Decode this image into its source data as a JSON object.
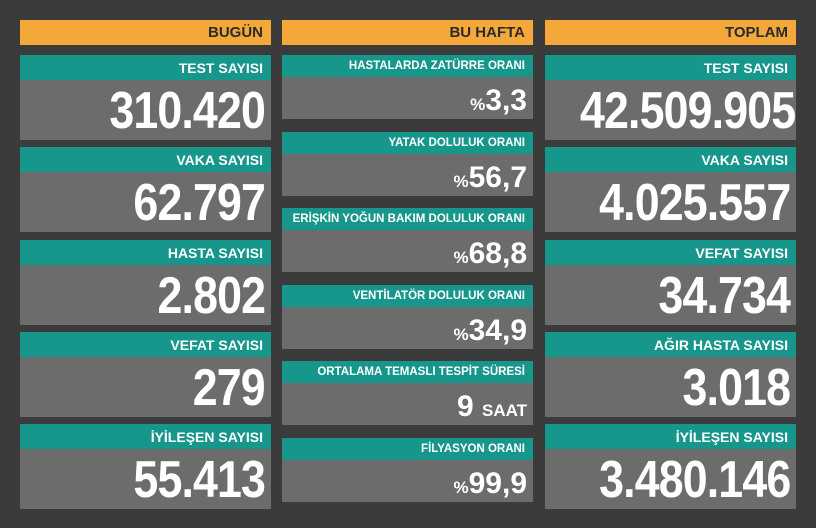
{
  "columns": [
    {
      "header": "BUGÜN",
      "cards": [
        {
          "label": "TEST SAYISI",
          "value": "310.420"
        },
        {
          "label": "VAKA SAYISI",
          "value": "62.797"
        },
        {
          "label": "HASTA SAYISI",
          "value": "2.802"
        },
        {
          "label": "VEFAT SAYISI",
          "value": "279"
        },
        {
          "label": "İYİLEŞEN SAYISI",
          "value": "55.413"
        }
      ]
    },
    {
      "header": "BU HAFTA",
      "cards": [
        {
          "label": "HASTALARDA ZATÜRRE ORANI",
          "prefix": "%",
          "value": "3,3"
        },
        {
          "label": "YATAK DOLULUK ORANI",
          "prefix": "%",
          "value": "56,7"
        },
        {
          "label": "ERİŞKİN YOĞUN BAKIM DOLULUK ORANI",
          "prefix": "%",
          "value": "68,8"
        },
        {
          "label": "VENTİLATÖR DOLULUK ORANI",
          "prefix": "%",
          "value": "34,9"
        },
        {
          "label": "ORTALAMA TEMASLI TESPİT SÜRESİ",
          "value": "9",
          "suffix": "SAAT"
        },
        {
          "label": "FİLYASYON ORANI",
          "prefix": "%",
          "value": "99,9"
        }
      ]
    },
    {
      "header": "TOPLAM",
      "cards": [
        {
          "label": "TEST SAYISI",
          "value": "42.509.905"
        },
        {
          "label": "VAKA SAYISI",
          "value": "4.025.557"
        },
        {
          "label": "VEFAT SAYISI",
          "value": "34.734"
        },
        {
          "label": "AĞIR HASTA SAYISI",
          "value": "3.018"
        },
        {
          "label": "İYİLEŞEN SAYISI",
          "value": "3.480.146"
        }
      ]
    }
  ]
}
